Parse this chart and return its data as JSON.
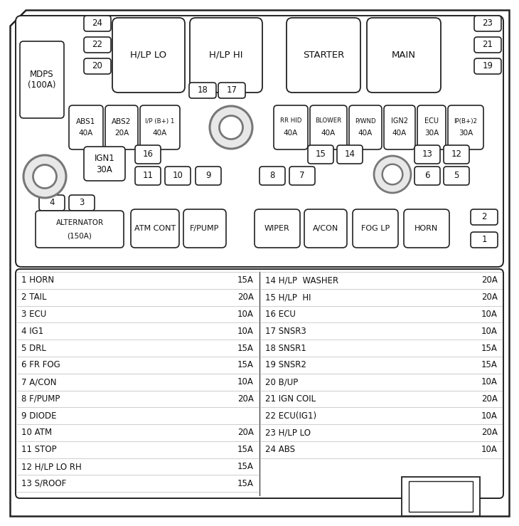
{
  "fuse_legend_left": [
    {
      "num": "1",
      "name": "HORN",
      "amp": "15A"
    },
    {
      "num": "2",
      "name": "TAIL",
      "amp": "20A"
    },
    {
      "num": "3",
      "name": "ECU",
      "amp": "10A"
    },
    {
      "num": "4",
      "name": "IG1",
      "amp": "10A"
    },
    {
      "num": "5",
      "name": "DRL",
      "amp": "15A"
    },
    {
      "num": "6",
      "name": "FR FOG",
      "amp": "15A"
    },
    {
      "num": "7",
      "name": "A/CON",
      "amp": "10A"
    },
    {
      "num": "8",
      "name": "F/PUMP",
      "amp": "20A"
    },
    {
      "num": "9",
      "name": "DIODE",
      "amp": ""
    },
    {
      "num": "10",
      "name": "ATM",
      "amp": "20A"
    },
    {
      "num": "11",
      "name": "STOP",
      "amp": "15A"
    },
    {
      "num": "12",
      "name": "H/LP LO RH",
      "amp": "15A"
    },
    {
      "num": "13",
      "name": "S/ROOF",
      "amp": "15A"
    }
  ],
  "fuse_legend_right": [
    {
      "num": "14",
      "name": "H/LP  WASHER",
      "amp": "20A"
    },
    {
      "num": "15",
      "name": "H/LP  HI",
      "amp": "20A"
    },
    {
      "num": "16",
      "name": "ECU",
      "amp": "10A"
    },
    {
      "num": "17",
      "name": "SNSR3",
      "amp": "10A"
    },
    {
      "num": "18",
      "name": "SNSR1",
      "amp": "15A"
    },
    {
      "num": "19",
      "name": "SNSR2",
      "amp": "15A"
    },
    {
      "num": "20",
      "name": "B/UP",
      "amp": "10A"
    },
    {
      "num": "21",
      "name": "IGN COIL",
      "amp": "20A"
    },
    {
      "num": "22",
      "name": "ECU(IG1)",
      "amp": "10A"
    },
    {
      "num": "23",
      "name": "H/LP LO",
      "amp": "20A"
    },
    {
      "num": "24",
      "name": "ABS",
      "amp": "10A"
    }
  ]
}
